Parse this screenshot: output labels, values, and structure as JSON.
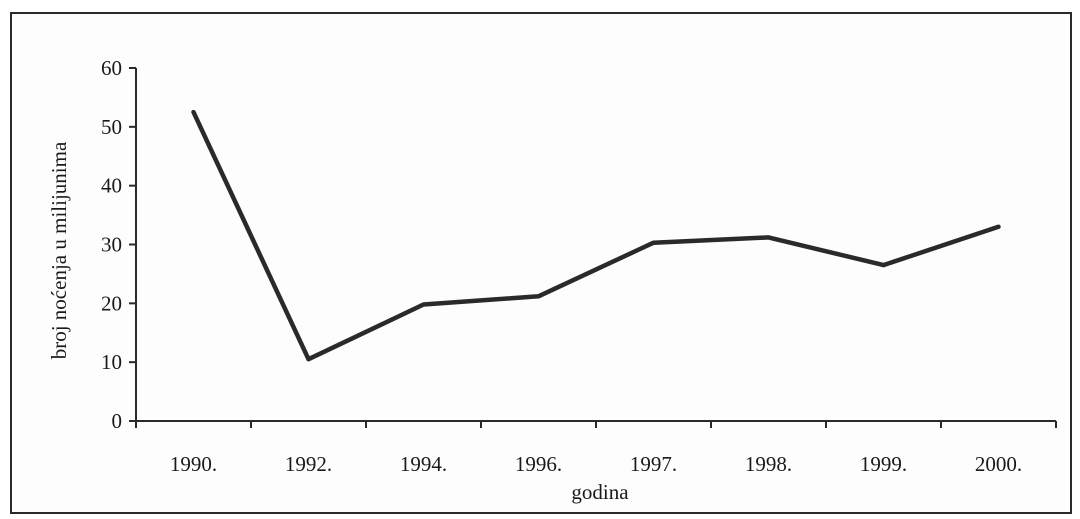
{
  "chart_data": {
    "type": "line",
    "title": "",
    "xlabel": "godina",
    "ylabel": "broj noćenja u milijunima",
    "categories": [
      "1990.",
      "1992.",
      "1994.",
      "1996.",
      "1997.",
      "1998.",
      "1999.",
      "2000."
    ],
    "series": [
      {
        "values": [
          52.5,
          10.5,
          19.8,
          21.2,
          30.3,
          31.2,
          26.5,
          33.0
        ]
      }
    ],
    "ylim": [
      0,
      60
    ],
    "yticks": [
      0,
      10,
      20,
      30,
      40,
      50,
      60
    ],
    "grid": false,
    "legend": "none",
    "line_color": "#2a2a2a"
  }
}
